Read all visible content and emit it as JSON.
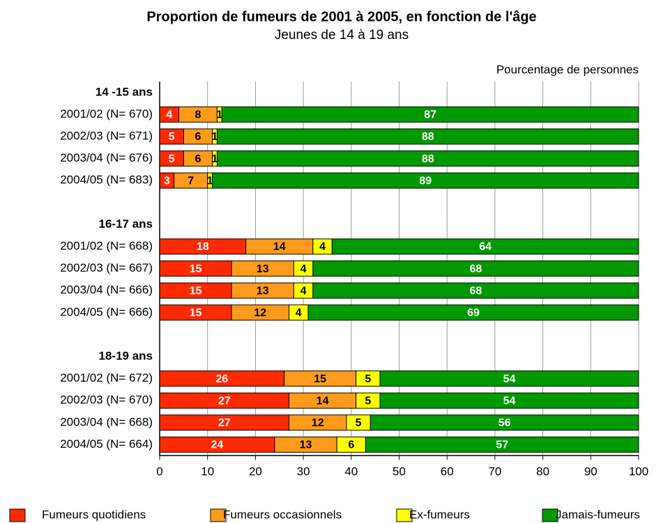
{
  "chart_data": {
    "type": "stacked_barh",
    "title": "Proportion de fumeurs de 2001 à 2005, en fonction de l'âge",
    "subtitle": "Jeunes de 14 à 19 ans",
    "xlabel": "Pourcentage de personnes",
    "categories": [
      "14 -15 ans",
      "2001/02 (N= 670)",
      "2002/03 (N= 671)",
      "2003/04 (N= 676)",
      "2004/05 (N= 683)",
      null,
      "16-17 ans",
      "2001/02 (N= 668)",
      "2002/03 (N= 667)",
      "2003/04 (N= 666)",
      "2004/05 (N= 666)",
      null,
      "18-19 ans",
      "2001/02 (N= 672)",
      "2002/03 (N= 670)",
      "2003/04 (N= 668)",
      "2004/05 (N= 664)"
    ],
    "series": [
      {
        "name": "Fumeurs quotidiens",
        "color": "#ff2a00",
        "values": [
          null,
          4,
          5,
          5,
          3,
          null,
          null,
          18,
          15,
          15,
          15,
          null,
          null,
          26,
          27,
          27,
          24
        ]
      },
      {
        "name": "Fumeurs occasionnels",
        "color": "#ff9a1a",
        "values": [
          null,
          8,
          6,
          6,
          7,
          null,
          null,
          14,
          13,
          13,
          12,
          null,
          null,
          15,
          14,
          12,
          13
        ]
      },
      {
        "name": "Ex-fumeurs",
        "color": "#ffff00",
        "values": [
          null,
          1,
          1,
          1,
          1,
          null,
          null,
          4,
          4,
          4,
          4,
          null,
          null,
          5,
          5,
          5,
          6
        ]
      },
      {
        "name": "Jamais-fumeurs",
        "color": "#009900",
        "values": [
          null,
          87,
          88,
          88,
          89,
          null,
          null,
          64,
          68,
          68,
          69,
          null,
          null,
          54,
          54,
          56,
          57
        ]
      }
    ],
    "xlim": [
      0,
      100
    ],
    "xticks": [
      0,
      10,
      20,
      30,
      40,
      50,
      60,
      70,
      80,
      90,
      100
    ],
    "grid": true
  }
}
